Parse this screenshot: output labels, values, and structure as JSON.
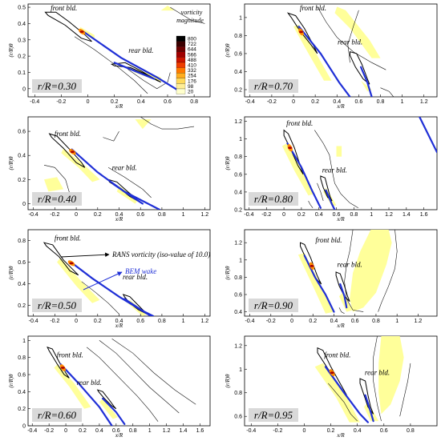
{
  "chart_data": [
    {
      "type": "contour",
      "panel": "r/R=0.30",
      "xlabel": "x/R",
      "ylabel": "(r/R)θ",
      "xlim": [
        -0.45,
        0.92
      ],
      "ylim": [
        -0.05,
        0.52
      ],
      "xticks": [
        "-0.4",
        "-0.2",
        "0",
        "0.2",
        "0.4",
        "0.6",
        "0.8"
      ],
      "yticks": [
        "0",
        "0.1",
        "0.2",
        "0.3",
        "0.4",
        "0.5"
      ],
      "front_label": "front bld.",
      "rear_label": "rear bld.",
      "rr_label": "r/R=0.30"
    },
    {
      "type": "contour",
      "panel": "r/R=0.70",
      "xlabel": "x/R",
      "ylabel": "(r/R)θ",
      "xlim": [
        -0.45,
        1.32
      ],
      "ylim": [
        0.12,
        1.15
      ],
      "xticks": [
        "-0.4",
        "-0.2",
        "0",
        "0.2",
        "0.4",
        "0.6",
        "0.8",
        "1",
        "1.2"
      ],
      "yticks": [
        "0.2",
        "0.4",
        "0.6",
        "0.8",
        "1"
      ],
      "front_label": "front bld.",
      "rear_label": "rear bld.",
      "rr_label": "r/R=0.70"
    },
    {
      "type": "contour",
      "panel": "r/R=0.40",
      "xlabel": "x/R",
      "ylabel": "(r/R)θ",
      "xlim": [
        -0.45,
        1.25
      ],
      "ylim": [
        -0.05,
        0.72
      ],
      "xticks": [
        "-0.4",
        "-0.2",
        "0",
        "0.2",
        "0.4",
        "0.6",
        "0.8",
        "1",
        "1.2"
      ],
      "yticks": [
        "0",
        "0.2",
        "0.4",
        "0.6"
      ],
      "front_label": "front bld.",
      "rear_label": "rear bld.",
      "rr_label": "r/R=0.40"
    },
    {
      "type": "contour",
      "panel": "r/R=0.80",
      "xlabel": "x/R",
      "ylabel": "(r/R)θ",
      "xlim": [
        -0.45,
        1.75
      ],
      "ylim": [
        0.2,
        1.25
      ],
      "xticks": [
        "-0.4",
        "-0.2",
        "0",
        "0.2",
        "0.4",
        "0.6",
        "0.8",
        "1",
        "1.2",
        "1.4",
        "1.6"
      ],
      "yticks": [
        "0.2",
        "0.4",
        "0.6",
        "0.8",
        "1",
        "1.2"
      ],
      "front_label": "front bld.",
      "rear_label": "rear bld.",
      "rr_label": "r/R=0.80"
    },
    {
      "type": "contour",
      "panel": "r/R=0.50",
      "xlabel": "x/R",
      "ylabel": "(r/R)θ",
      "xlim": [
        -0.45,
        1.25
      ],
      "ylim": [
        0.1,
        0.9
      ],
      "xticks": [
        "-0.4",
        "-0.2",
        "0",
        "0.2",
        "0.4",
        "0.6",
        "0.8",
        "1",
        "1.2"
      ],
      "yticks": [
        "0.2",
        "0.4",
        "0.6",
        "0.8"
      ],
      "front_label": "front bld.",
      "rear_label": "rear bld.",
      "rr_label": "r/R=0.50",
      "annotations": [
        "RANS vorticity (iso-value of 10.0)",
        "BEM wake"
      ]
    },
    {
      "type": "contour",
      "panel": "r/R=0.90",
      "xlabel": "x/R",
      "ylabel": "(r/R)θ",
      "xlim": [
        -0.45,
        1.38
      ],
      "ylim": [
        0.35,
        1.35
      ],
      "xticks": [
        "-0.4",
        "-0.2",
        "0",
        "0.2",
        "0.4",
        "0.6",
        "0.8",
        "1",
        "1.2"
      ],
      "yticks": [
        "0.4",
        "0.6",
        "0.8",
        "1",
        "1.2"
      ],
      "front_label": "front bld.",
      "rear_label": "rear bld.",
      "rr_label": "r/R=0.90"
    },
    {
      "type": "contour",
      "panel": "r/R=0.60",
      "xlabel": "x/R",
      "ylabel": "(r/R)θ",
      "xlim": [
        -0.45,
        1.72
      ],
      "ylim": [
        0,
        1.05
      ],
      "xticks": [
        "-0.4",
        "-0.2",
        "0",
        "0.2",
        "0.4",
        "0.6",
        "0.8",
        "1",
        "1.2",
        "1.4",
        "1.6"
      ],
      "yticks": [
        "0",
        "0.2",
        "0.4",
        "0.6",
        "0.8",
        "1"
      ],
      "front_label": "front bld.",
      "rear_label": "rear bld.",
      "rr_label": "r/R=0.60"
    },
    {
      "type": "contour",
      "panel": "r/R=0.95",
      "xlabel": "x/R",
      "ylabel": "(r/R)θ",
      "xlim": [
        -0.45,
        1.0
      ],
      "ylim": [
        0.52,
        1.28
      ],
      "xticks": [
        "-0.4",
        "-0.2",
        "0",
        "0.2",
        "0.4",
        "0.6",
        "0.8"
      ],
      "yticks": [
        "0.6",
        "0.8",
        "1",
        "1.2"
      ],
      "front_label": "front bld.",
      "rear_label": "rear bld.",
      "rr_label": "r/R=0.95"
    }
  ],
  "colorbar": {
    "title_line1": "vorticity",
    "title_line2": "magnitude",
    "levels": [
      "800",
      "722",
      "644",
      "566",
      "488",
      "410",
      "332",
      "254",
      "176",
      "98",
      "20"
    ],
    "colors": [
      "#000000",
      "#3a0000",
      "#6e0000",
      "#a00000",
      "#cc1500",
      "#ee3d00",
      "#ff7a00",
      "#ffad1e",
      "#ffd95a",
      "#ffee96",
      "#ffffcc"
    ]
  },
  "colors": {
    "wake": "#1f2fd6",
    "contour": "#111111",
    "low_vorticity": "#ffff9a"
  }
}
